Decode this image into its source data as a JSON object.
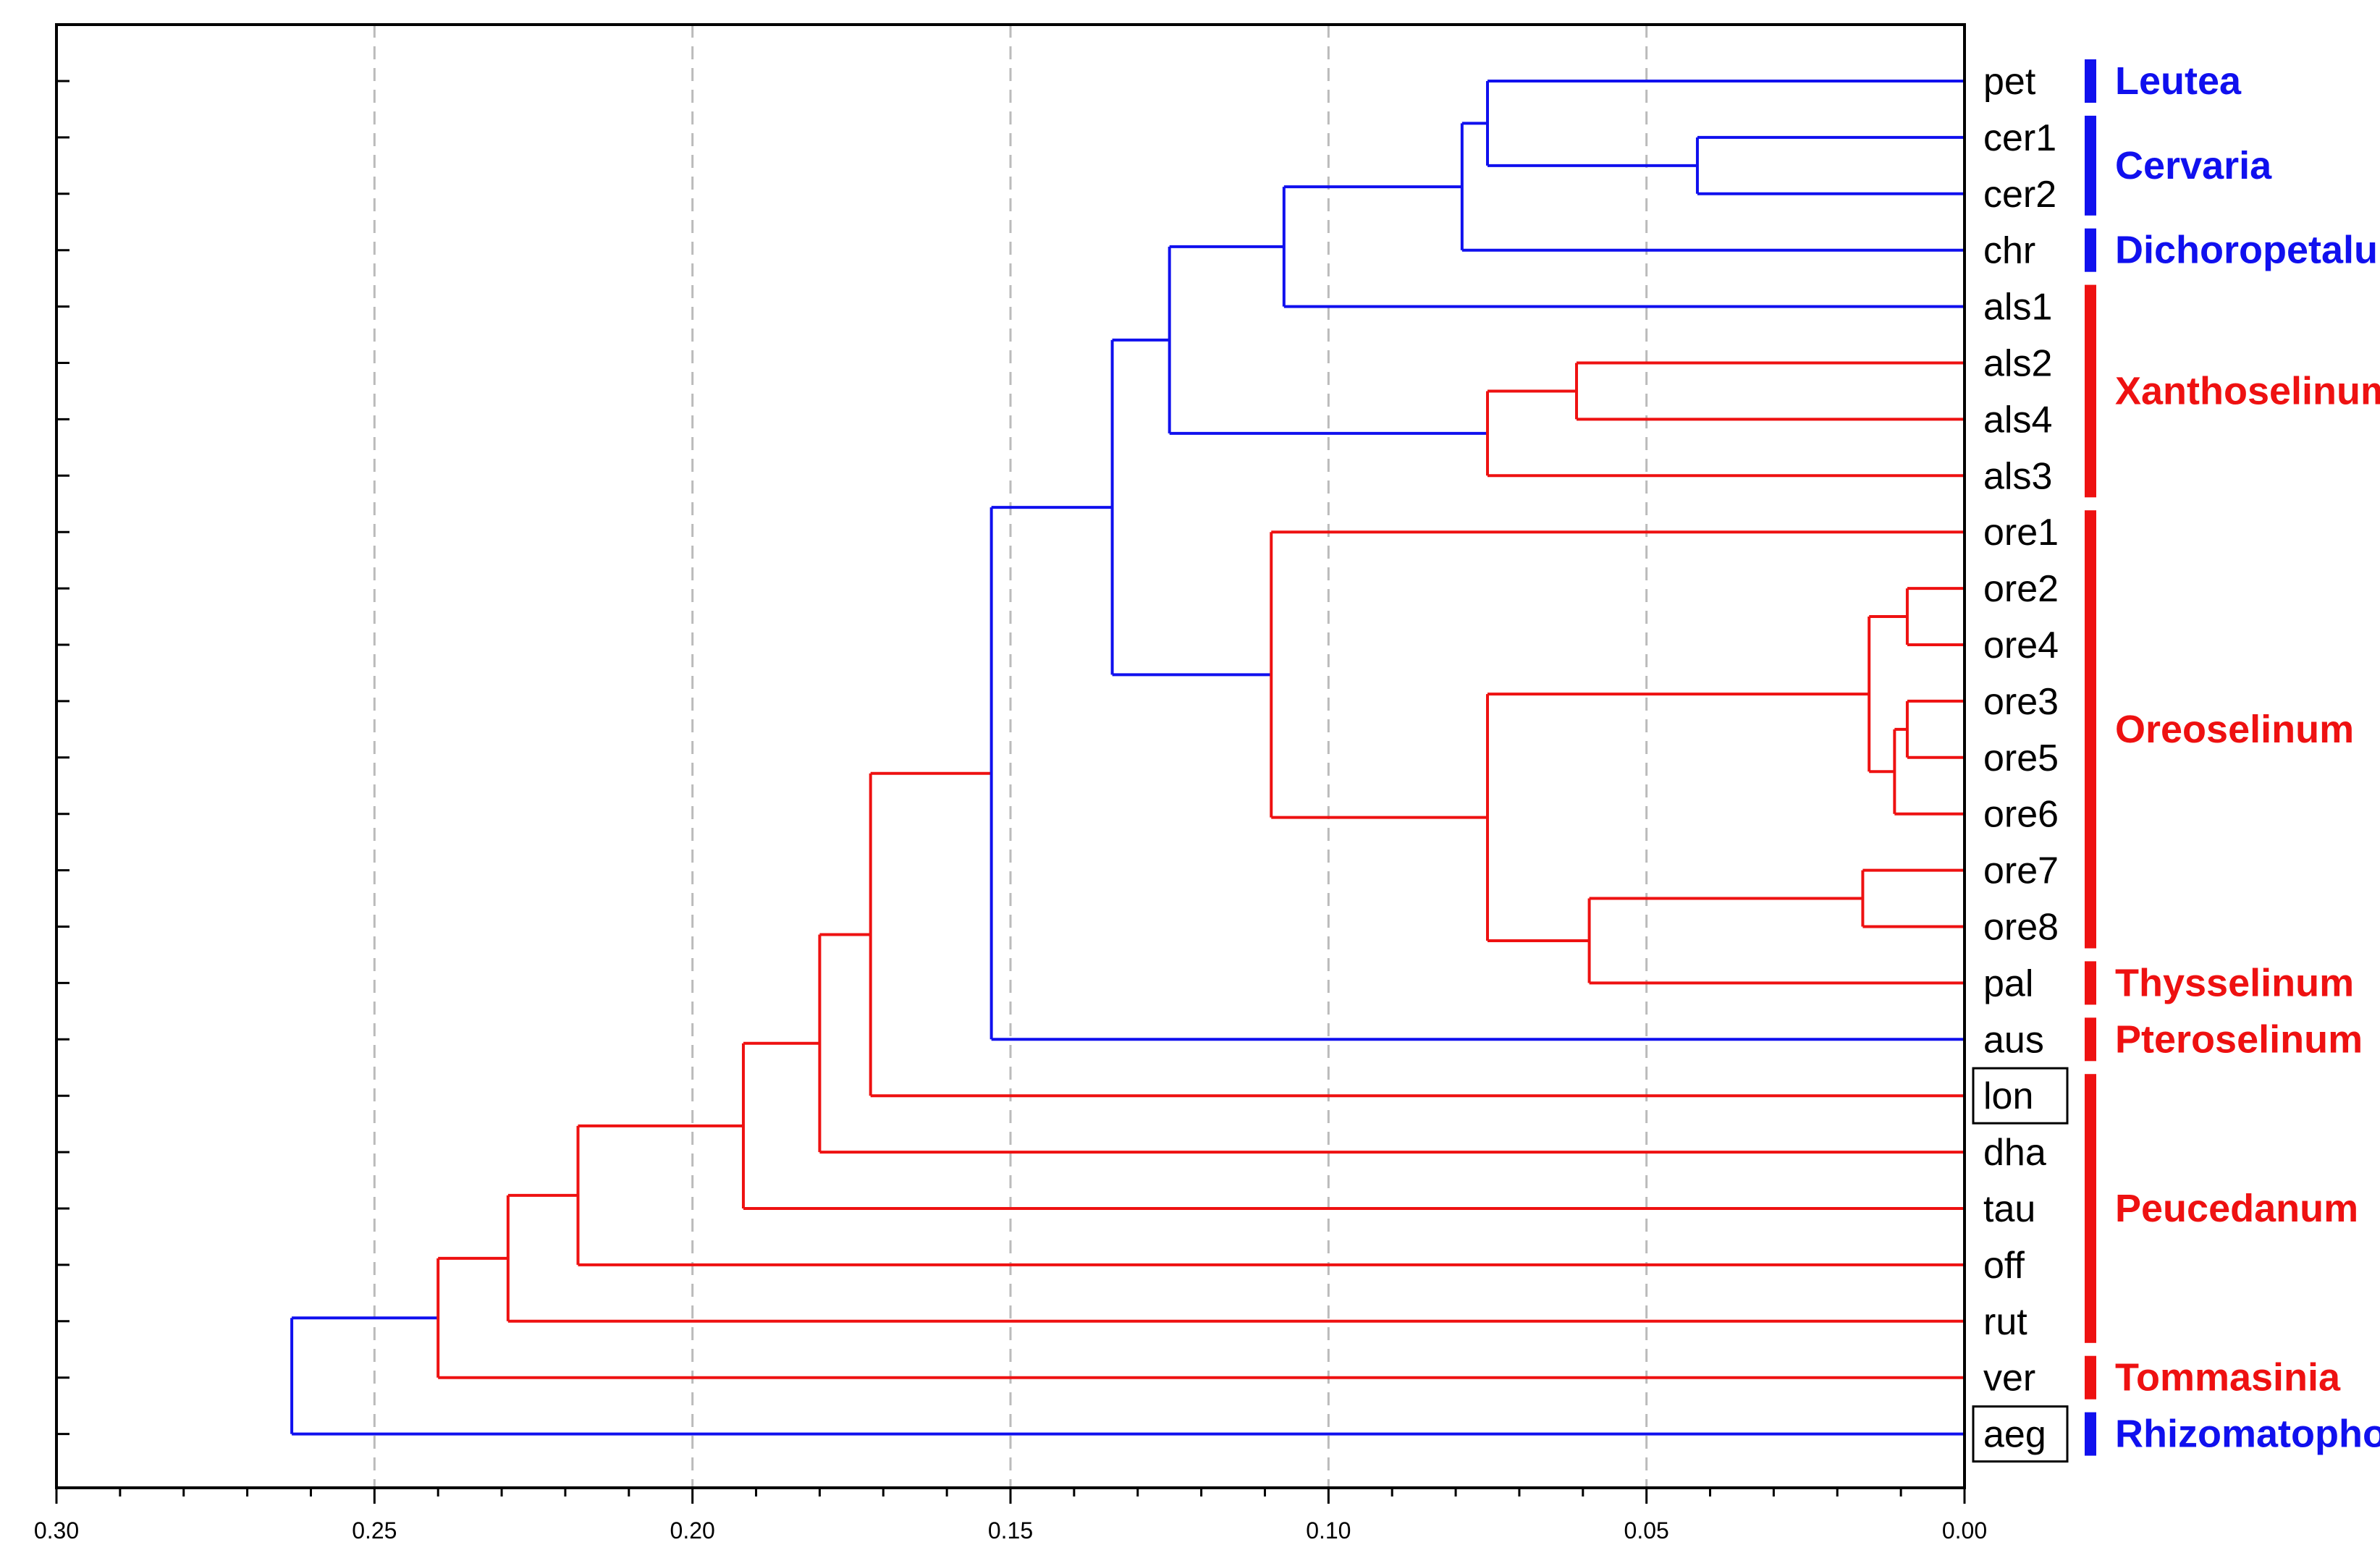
{
  "chart_data": {
    "type": "dendrogram",
    "title": "",
    "xlabel": "",
    "ylabel": "",
    "xlim": [
      0.3,
      0.0
    ],
    "x_ticks": [
      {
        "value": 0.3,
        "label": "0.30"
      },
      {
        "value": 0.25,
        "label": "0.25"
      },
      {
        "value": 0.2,
        "label": "0.20"
      },
      {
        "value": 0.15,
        "label": "0.15"
      },
      {
        "value": 0.1,
        "label": "0.10"
      },
      {
        "value": 0.05,
        "label": "0.05"
      },
      {
        "value": 0.0,
        "label": "0.00"
      }
    ],
    "grid": "dashed vertical",
    "colors": {
      "blue": "#1010ee",
      "red": "#ee1111",
      "grid": "#bbbbbb",
      "axis": "#000000"
    },
    "leaves": [
      {
        "id": "pet",
        "label": "pet",
        "color": "#1010ee",
        "boxed": false
      },
      {
        "id": "cer1",
        "label": "cer1",
        "color": "#1010ee",
        "boxed": false
      },
      {
        "id": "cer2",
        "label": "cer2",
        "color": "#1010ee",
        "boxed": false
      },
      {
        "id": "chr",
        "label": "chr",
        "color": "#1010ee",
        "boxed": false
      },
      {
        "id": "als1",
        "label": "als1",
        "color": "#ee1111",
        "boxed": false
      },
      {
        "id": "als2",
        "label": "als2",
        "color": "#ee1111",
        "boxed": false
      },
      {
        "id": "als4",
        "label": "als4",
        "color": "#ee1111",
        "boxed": false
      },
      {
        "id": "als3",
        "label": "als3",
        "color": "#ee1111",
        "boxed": false
      },
      {
        "id": "ore1",
        "label": "ore1",
        "color": "#ee1111",
        "boxed": false
      },
      {
        "id": "ore2",
        "label": "ore2",
        "color": "#ee1111",
        "boxed": false
      },
      {
        "id": "ore4",
        "label": "ore4",
        "color": "#ee1111",
        "boxed": false
      },
      {
        "id": "ore3",
        "label": "ore3",
        "color": "#ee1111",
        "boxed": false
      },
      {
        "id": "ore5",
        "label": "ore5",
        "color": "#ee1111",
        "boxed": false
      },
      {
        "id": "ore6",
        "label": "ore6",
        "color": "#ee1111",
        "boxed": false
      },
      {
        "id": "ore7",
        "label": "ore7",
        "color": "#ee1111",
        "boxed": false
      },
      {
        "id": "ore8",
        "label": "ore8",
        "color": "#ee1111",
        "boxed": false
      },
      {
        "id": "pal",
        "label": "pal",
        "color": "#ee1111",
        "boxed": false
      },
      {
        "id": "aus",
        "label": "aus",
        "color": "#ee1111",
        "boxed": false
      },
      {
        "id": "lon",
        "label": "lon",
        "color": "#ee1111",
        "boxed": true
      },
      {
        "id": "dha",
        "label": "dha",
        "color": "#ee1111",
        "boxed": false
      },
      {
        "id": "tau",
        "label": "tau",
        "color": "#ee1111",
        "boxed": false
      },
      {
        "id": "off",
        "label": "off",
        "color": "#ee1111",
        "boxed": false
      },
      {
        "id": "rut",
        "label": "rut",
        "color": "#ee1111",
        "boxed": false
      },
      {
        "id": "ver",
        "label": "ver",
        "color": "#ee1111",
        "boxed": false
      },
      {
        "id": "aeg",
        "label": "aeg",
        "color": "#1010ee",
        "boxed": true
      }
    ],
    "merges": [
      {
        "id": "n_cer",
        "children": [
          "cer1",
          "cer2"
        ],
        "height": 0.042,
        "color": "#1010ee"
      },
      {
        "id": "n_petcer",
        "children": [
          "pet",
          "n_cer"
        ],
        "height": 0.075,
        "color": "#1010ee"
      },
      {
        "id": "n_leucerchr",
        "children": [
          "n_petcer",
          "chr"
        ],
        "height": 0.079,
        "color": "#1010ee"
      },
      {
        "id": "n_top4",
        "children": [
          "n_leucerchr",
          "als1"
        ],
        "height": 0.107,
        "color": "#1010ee"
      },
      {
        "id": "n_als24",
        "children": [
          "als2",
          "als4"
        ],
        "height": 0.061,
        "color": "#ee1111"
      },
      {
        "id": "n_als243",
        "children": [
          "n_als24",
          "als3"
        ],
        "height": 0.075,
        "color": "#ee1111"
      },
      {
        "id": "n_top5",
        "children": [
          "n_top4",
          "n_als243"
        ],
        "height": 0.125,
        "color": "#1010ee"
      },
      {
        "id": "n_o24",
        "children": [
          "ore2",
          "ore4"
        ],
        "height": 0.009,
        "color": "#ee1111"
      },
      {
        "id": "n_o35",
        "children": [
          "ore3",
          "ore5"
        ],
        "height": 0.009,
        "color": "#ee1111"
      },
      {
        "id": "n_o356",
        "children": [
          "n_o35",
          "ore6"
        ],
        "height": 0.011,
        "color": "#ee1111"
      },
      {
        "id": "n_o2-6",
        "children": [
          "n_o24",
          "n_o356"
        ],
        "height": 0.015,
        "color": "#ee1111"
      },
      {
        "id": "n_o78",
        "children": [
          "ore7",
          "ore8"
        ],
        "height": 0.016,
        "color": "#ee1111"
      },
      {
        "id": "n_o78pal",
        "children": [
          "n_o78",
          "pal"
        ],
        "height": 0.059,
        "color": "#ee1111"
      },
      {
        "id": "n_ore_mid",
        "children": [
          "n_o2-6",
          "n_o78pal"
        ],
        "height": 0.075,
        "color": "#ee1111"
      },
      {
        "id": "n_ore_all",
        "children": [
          "ore1",
          "n_ore_mid"
        ],
        "height": 0.109,
        "color": "#ee1111"
      },
      {
        "id": "n_big",
        "children": [
          "n_top5",
          "n_ore_all"
        ],
        "height": 0.134,
        "color": "#1010ee"
      },
      {
        "id": "n_big_aus",
        "children": [
          "n_big",
          "aus"
        ],
        "height": 0.153,
        "color": "#1010ee"
      },
      {
        "id": "n_lon",
        "children": [
          "n_big_aus",
          "lon"
        ],
        "height": 0.172,
        "color": "#ee1111"
      },
      {
        "id": "n_dha",
        "children": [
          "n_lon",
          "dha"
        ],
        "height": 0.18,
        "color": "#ee1111"
      },
      {
        "id": "n_tau",
        "children": [
          "n_dha",
          "tau"
        ],
        "height": 0.192,
        "color": "#ee1111"
      },
      {
        "id": "n_off",
        "children": [
          "n_tau",
          "off"
        ],
        "height": 0.218,
        "color": "#ee1111"
      },
      {
        "id": "n_rut",
        "children": [
          "n_off",
          "rut"
        ],
        "height": 0.229,
        "color": "#ee1111"
      },
      {
        "id": "n_ver",
        "children": [
          "n_rut",
          "ver"
        ],
        "height": 0.24,
        "color": "#ee1111"
      },
      {
        "id": "n_root",
        "children": [
          "n_ver",
          "aeg"
        ],
        "height": 0.263,
        "color": "#1010ee"
      }
    ],
    "groups": [
      {
        "name": "Leutea",
        "first": "pet",
        "last": "pet",
        "color": "#1010ee"
      },
      {
        "name": "Cervaria",
        "first": "cer1",
        "last": "cer2",
        "color": "#1010ee"
      },
      {
        "name": "Dichoropetalum",
        "first": "chr",
        "last": "chr",
        "color": "#1010ee"
      },
      {
        "name": "Xanthoselinum",
        "first": "als1",
        "last": "als3",
        "color": "#ee1111"
      },
      {
        "name": "Oreoselinum",
        "first": "ore1",
        "last": "ore8",
        "color": "#ee1111"
      },
      {
        "name": "Thysselinum",
        "first": "pal",
        "last": "pal",
        "color": "#ee1111"
      },
      {
        "name": "Pteroselinum",
        "first": "aus",
        "last": "aus",
        "color": "#ee1111"
      },
      {
        "name": "Peucedanum",
        "first": "lon",
        "last": "rut",
        "color": "#ee1111"
      },
      {
        "name": "Tommasinia",
        "first": "ver",
        "last": "ver",
        "color": "#ee1111"
      },
      {
        "name": "Rhizomatophora",
        "first": "aeg",
        "last": "aeg",
        "color": "#1010ee"
      }
    ]
  }
}
